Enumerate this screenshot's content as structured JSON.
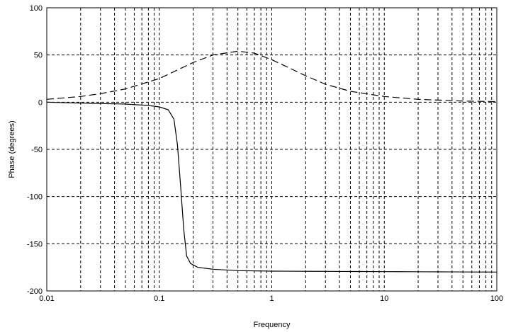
{
  "chart_data": {
    "type": "line",
    "title": "",
    "xlabel": "Frequency",
    "ylabel": "Phase (degrees)",
    "x_scale": "log",
    "xlim": [
      0.01,
      100
    ],
    "ylim": [
      -200,
      100
    ],
    "grid": true,
    "x_ticks": [
      0.01,
      0.1,
      1,
      10,
      100
    ],
    "x_tick_labels": [
      "0.01",
      "0.1",
      "1",
      "10",
      "100"
    ],
    "y_ticks": [
      -200,
      -150,
      -100,
      -50,
      0,
      50,
      100
    ],
    "y_tick_labels": [
      "-200",
      "-150",
      "-100",
      "-50",
      "0",
      "50",
      "100"
    ],
    "series": [
      {
        "style": "solid",
        "color": "#000000",
        "points": [
          [
            0.01,
            0.0
          ],
          [
            0.02,
            -1.0
          ],
          [
            0.05,
            -2.0
          ],
          [
            0.08,
            -3.5
          ],
          [
            0.1,
            -5.0
          ],
          [
            0.12,
            -8.0
          ],
          [
            0.135,
            -18.0
          ],
          [
            0.145,
            -45.0
          ],
          [
            0.155,
            -90.0
          ],
          [
            0.165,
            -135.0
          ],
          [
            0.175,
            -163.0
          ],
          [
            0.19,
            -171.0
          ],
          [
            0.22,
            -175.0
          ],
          [
            0.3,
            -177.0
          ],
          [
            0.5,
            -178.5
          ],
          [
            1,
            -179.0
          ],
          [
            10,
            -179.5
          ],
          [
            100,
            -180.0
          ]
        ]
      },
      {
        "style": "dashed",
        "color": "#000000",
        "points": [
          [
            0.01,
            3.0
          ],
          [
            0.02,
            6.0
          ],
          [
            0.03,
            9.0
          ],
          [
            0.05,
            14.0
          ],
          [
            0.1,
            25.0
          ],
          [
            0.2,
            42.0
          ],
          [
            0.3,
            50.0
          ],
          [
            0.5,
            54.0
          ],
          [
            0.7,
            52.0
          ],
          [
            1,
            45.0
          ],
          [
            2,
            28.0
          ],
          [
            3,
            19.0
          ],
          [
            5,
            11.5
          ],
          [
            10,
            6.0
          ],
          [
            20,
            3.0
          ],
          [
            50,
            1.2
          ],
          [
            100,
            0.6
          ]
        ]
      }
    ]
  }
}
